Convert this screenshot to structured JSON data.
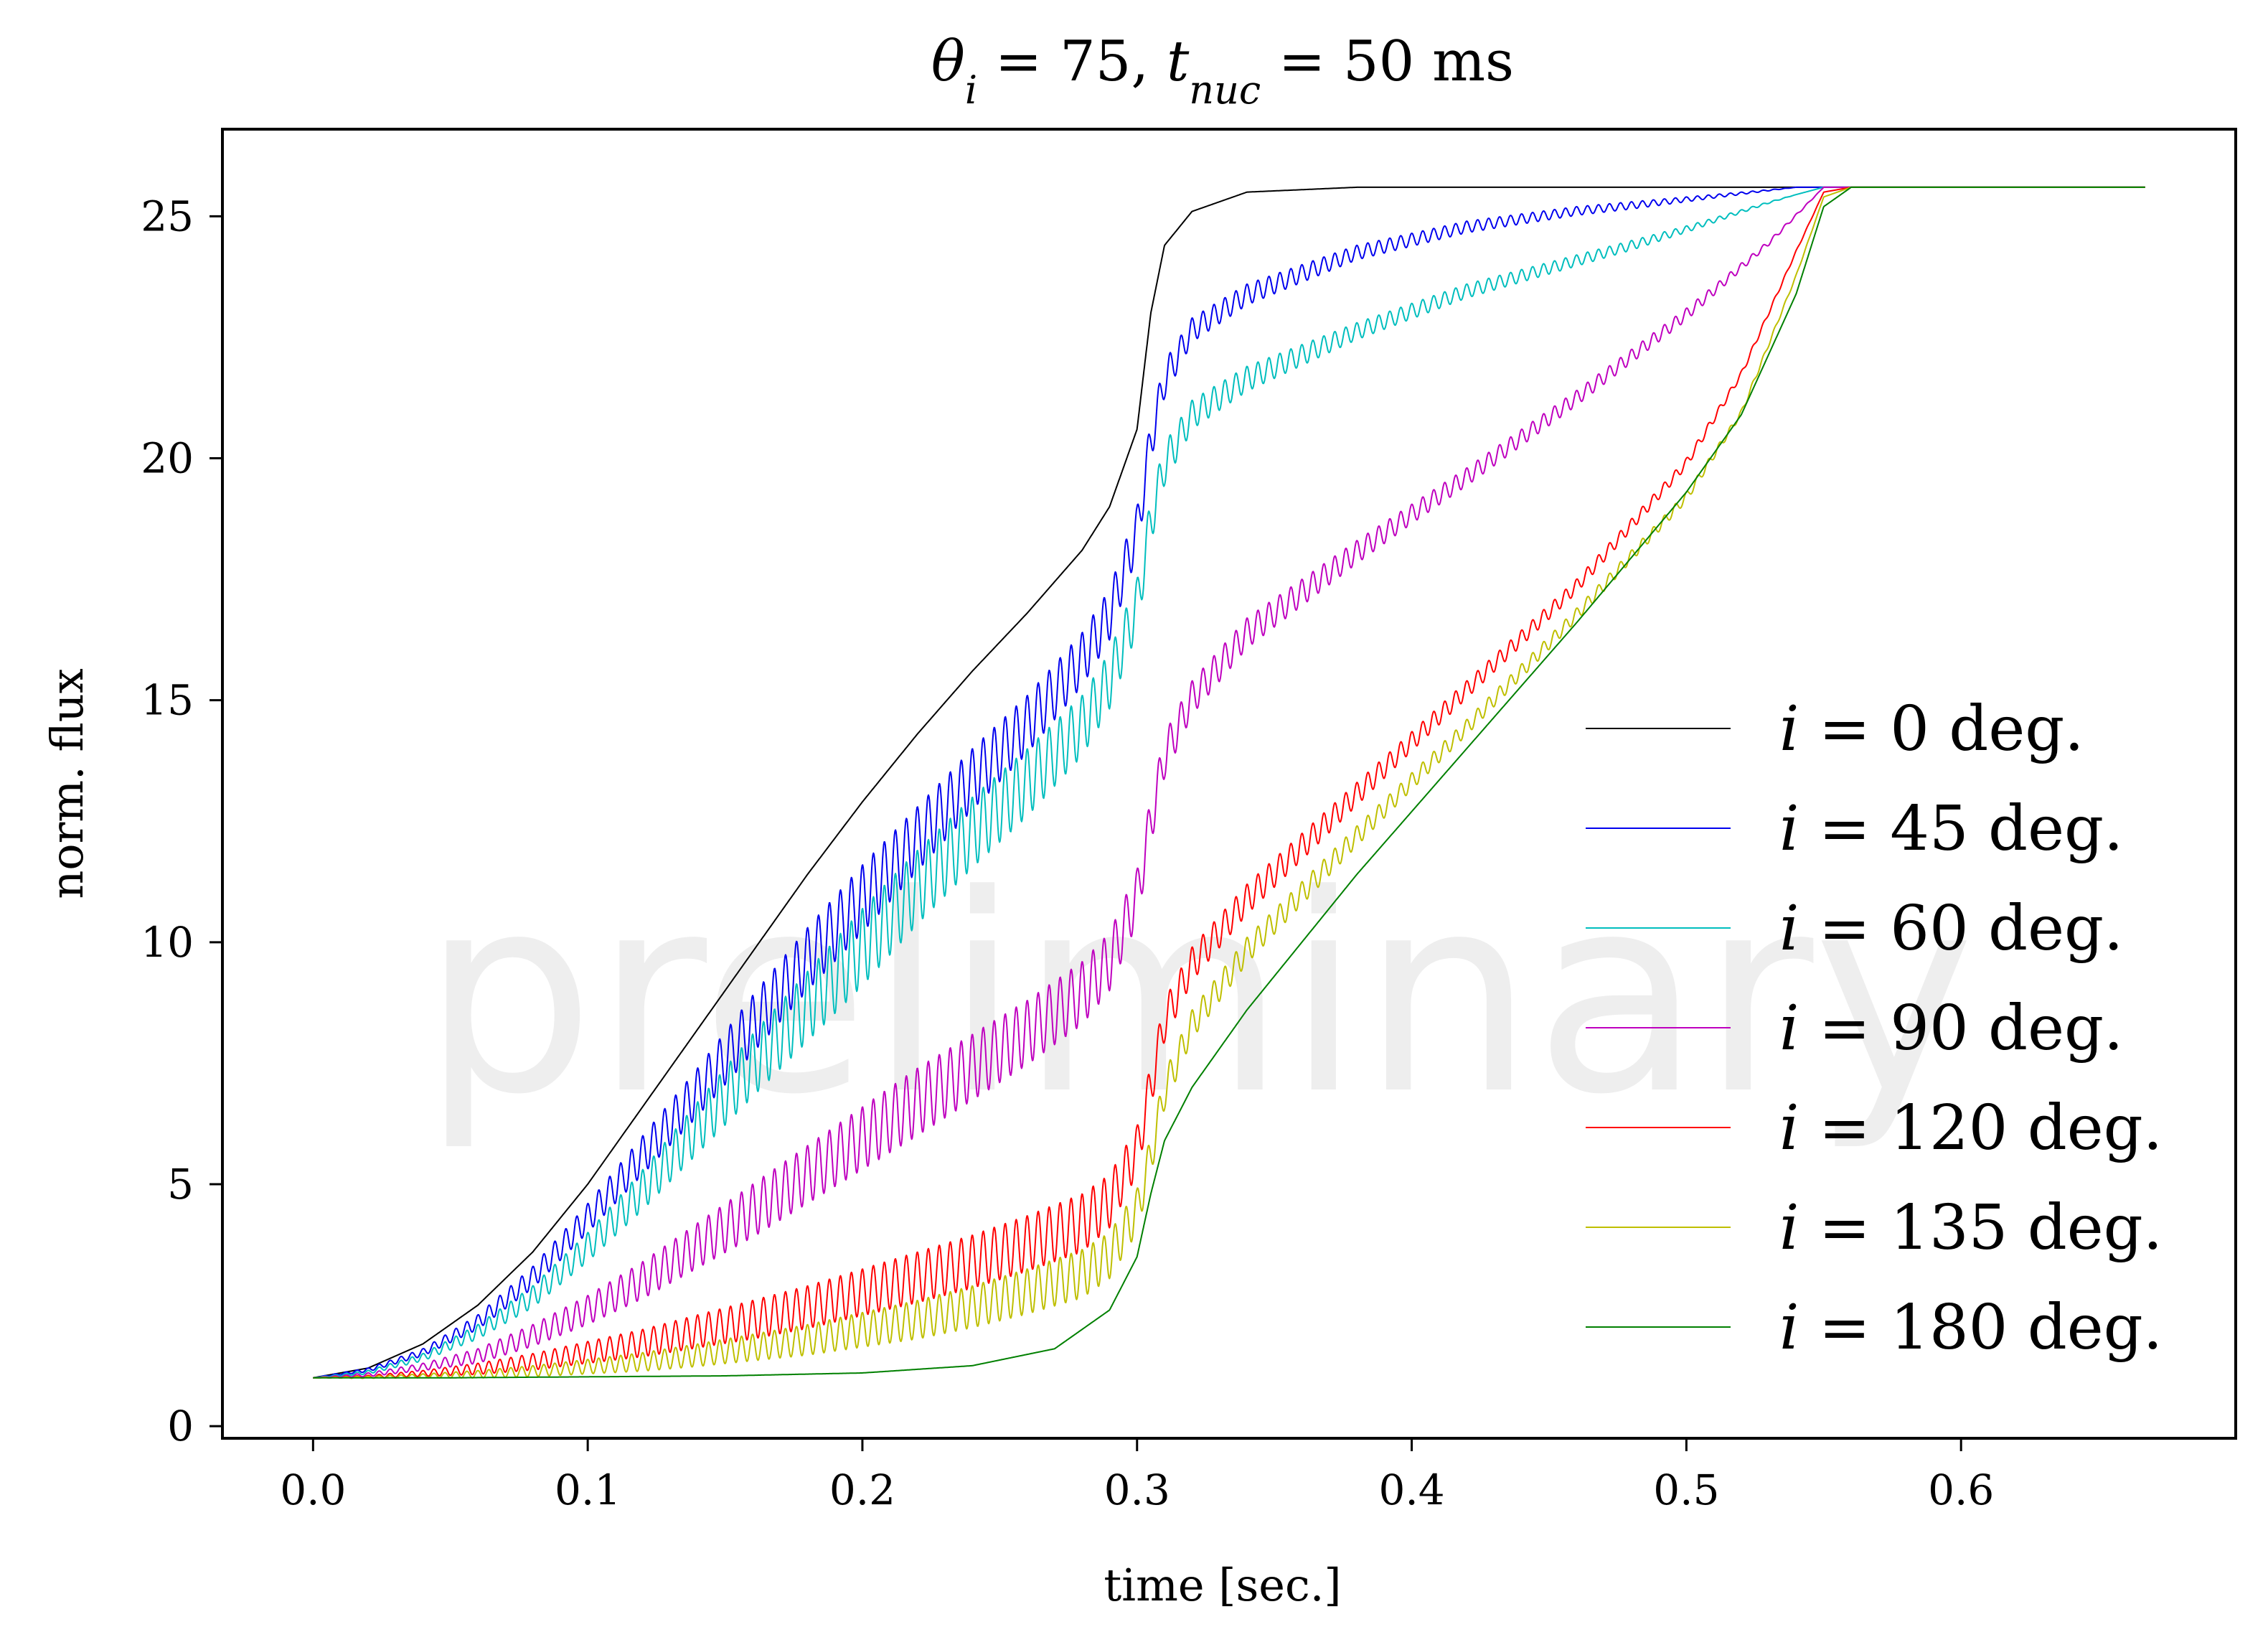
{
  "chart_data": {
    "type": "line",
    "title": "θ_i = 75, t_nuc = 50 ms",
    "xlabel": "time [sec.]",
    "ylabel": "norm. flux",
    "xlim": [
      -0.033,
      0.7
    ],
    "ylim": [
      -0.25,
      26.8
    ],
    "xticks": [
      0.0,
      0.1,
      0.2,
      0.3,
      0.4,
      0.5,
      0.6
    ],
    "xtick_labels": [
      "0.0",
      "0.1",
      "0.2",
      "0.3",
      "0.4",
      "0.5",
      "0.6"
    ],
    "yticks": [
      0,
      5,
      10,
      15,
      20,
      25
    ],
    "ytick_labels": [
      "0",
      "5",
      "10",
      "15",
      "20",
      "25"
    ],
    "grid": false,
    "legend_position": "lower-right",
    "watermark": "preliminary",
    "oscillation_period_s": 0.004,
    "series": [
      {
        "name": "i = 0 deg.",
        "color": "#000000",
        "points": [
          [
            0,
            1.0
          ],
          [
            0.02,
            1.2
          ],
          [
            0.04,
            1.7
          ],
          [
            0.06,
            2.5
          ],
          [
            0.08,
            3.6
          ],
          [
            0.1,
            5.0
          ],
          [
            0.12,
            6.6
          ],
          [
            0.14,
            8.2
          ],
          [
            0.16,
            9.8
          ],
          [
            0.18,
            11.4
          ],
          [
            0.2,
            12.9
          ],
          [
            0.22,
            14.3
          ],
          [
            0.24,
            15.6
          ],
          [
            0.26,
            16.8
          ],
          [
            0.28,
            18.1
          ],
          [
            0.29,
            19.0
          ],
          [
            0.3,
            20.6
          ],
          [
            0.305,
            23.0
          ],
          [
            0.31,
            24.4
          ],
          [
            0.32,
            25.1
          ],
          [
            0.34,
            25.5
          ],
          [
            0.38,
            25.6
          ],
          [
            0.45,
            25.6
          ],
          [
            0.55,
            25.6
          ],
          [
            0.667,
            25.6
          ]
        ],
        "amplitude": [
          [
            0,
            0
          ],
          [
            0.667,
            0
          ]
        ]
      },
      {
        "name": "i = 45 deg.",
        "color": "#0000ee",
        "points": [
          [
            0,
            1.0
          ],
          [
            0.02,
            1.2
          ],
          [
            0.04,
            1.6
          ],
          [
            0.06,
            2.3
          ],
          [
            0.08,
            3.3
          ],
          [
            0.1,
            4.6
          ],
          [
            0.12,
            6.0
          ],
          [
            0.14,
            7.4
          ],
          [
            0.16,
            8.9
          ],
          [
            0.18,
            10.3
          ],
          [
            0.2,
            11.6
          ],
          [
            0.22,
            12.8
          ],
          [
            0.24,
            14.0
          ],
          [
            0.26,
            15.1
          ],
          [
            0.28,
            16.4
          ],
          [
            0.29,
            17.3
          ],
          [
            0.3,
            19.0
          ],
          [
            0.305,
            20.8
          ],
          [
            0.31,
            22.0
          ],
          [
            0.32,
            22.9
          ],
          [
            0.34,
            23.6
          ],
          [
            0.38,
            24.4
          ],
          [
            0.42,
            24.9
          ],
          [
            0.46,
            25.2
          ],
          [
            0.5,
            25.4
          ],
          [
            0.54,
            25.6
          ],
          [
            0.6,
            25.6
          ],
          [
            0.667,
            25.6
          ]
        ],
        "amplitude": [
          [
            0,
            0
          ],
          [
            0.04,
            0.15
          ],
          [
            0.1,
            0.6
          ],
          [
            0.16,
            1.2
          ],
          [
            0.2,
            1.4
          ],
          [
            0.26,
            1.2
          ],
          [
            0.3,
            1.0
          ],
          [
            0.32,
            0.5
          ],
          [
            0.38,
            0.3
          ],
          [
            0.48,
            0.15
          ],
          [
            0.54,
            0
          ],
          [
            0.667,
            0
          ]
        ]
      },
      {
        "name": "i = 60 deg.",
        "color": "#00bebe",
        "points": [
          [
            0,
            1.0
          ],
          [
            0.02,
            1.15
          ],
          [
            0.04,
            1.5
          ],
          [
            0.06,
            2.1
          ],
          [
            0.08,
            2.9
          ],
          [
            0.1,
            4.0
          ],
          [
            0.12,
            5.3
          ],
          [
            0.14,
            6.7
          ],
          [
            0.16,
            8.1
          ],
          [
            0.18,
            9.4
          ],
          [
            0.2,
            10.7
          ],
          [
            0.22,
            11.9
          ],
          [
            0.24,
            13.0
          ],
          [
            0.26,
            14.0
          ],
          [
            0.28,
            15.1
          ],
          [
            0.29,
            16.0
          ],
          [
            0.3,
            17.5
          ],
          [
            0.305,
            19.2
          ],
          [
            0.31,
            20.3
          ],
          [
            0.32,
            21.2
          ],
          [
            0.34,
            21.9
          ],
          [
            0.38,
            22.8
          ],
          [
            0.42,
            23.6
          ],
          [
            0.46,
            24.2
          ],
          [
            0.5,
            24.8
          ],
          [
            0.53,
            25.3
          ],
          [
            0.55,
            25.6
          ],
          [
            0.6,
            25.6
          ],
          [
            0.667,
            25.6
          ]
        ],
        "amplitude": [
          [
            0,
            0
          ],
          [
            0.04,
            0.15
          ],
          [
            0.1,
            0.6
          ],
          [
            0.16,
            1.3
          ],
          [
            0.2,
            1.6
          ],
          [
            0.26,
            1.4
          ],
          [
            0.3,
            1.1
          ],
          [
            0.32,
            0.6
          ],
          [
            0.38,
            0.35
          ],
          [
            0.48,
            0.2
          ],
          [
            0.54,
            0
          ],
          [
            0.667,
            0
          ]
        ]
      },
      {
        "name": "i = 90 deg.",
        "color": "#bf00bf",
        "points": [
          [
            0,
            1.0
          ],
          [
            0.02,
            1.1
          ],
          [
            0.04,
            1.3
          ],
          [
            0.06,
            1.6
          ],
          [
            0.08,
            2.1
          ],
          [
            0.1,
            2.7
          ],
          [
            0.12,
            3.4
          ],
          [
            0.14,
            4.2
          ],
          [
            0.16,
            5.0
          ],
          [
            0.18,
            5.8
          ],
          [
            0.2,
            6.6
          ],
          [
            0.22,
            7.4
          ],
          [
            0.24,
            8.1
          ],
          [
            0.26,
            8.8
          ],
          [
            0.28,
            9.6
          ],
          [
            0.29,
            10.2
          ],
          [
            0.3,
            11.5
          ],
          [
            0.305,
            13.0
          ],
          [
            0.31,
            14.3
          ],
          [
            0.32,
            15.4
          ],
          [
            0.34,
            16.7
          ],
          [
            0.38,
            18.3
          ],
          [
            0.42,
            19.8
          ],
          [
            0.46,
            21.4
          ],
          [
            0.5,
            23.1
          ],
          [
            0.53,
            24.5
          ],
          [
            0.55,
            25.6
          ],
          [
            0.6,
            25.6
          ],
          [
            0.667,
            25.6
          ]
        ],
        "amplitude": [
          [
            0,
            0
          ],
          [
            0.04,
            0.15
          ],
          [
            0.1,
            0.6
          ],
          [
            0.16,
            1.1
          ],
          [
            0.22,
            1.4
          ],
          [
            0.28,
            1.3
          ],
          [
            0.3,
            1.1
          ],
          [
            0.32,
            0.7
          ],
          [
            0.4,
            0.4
          ],
          [
            0.5,
            0.25
          ],
          [
            0.55,
            0
          ],
          [
            0.667,
            0
          ]
        ]
      },
      {
        "name": "i = 120 deg.",
        "color": "#ff0000",
        "points": [
          [
            0,
            1.0
          ],
          [
            0.02,
            1.05
          ],
          [
            0.04,
            1.15
          ],
          [
            0.06,
            1.3
          ],
          [
            0.08,
            1.5
          ],
          [
            0.1,
            1.75
          ],
          [
            0.12,
            2.0
          ],
          [
            0.14,
            2.3
          ],
          [
            0.16,
            2.6
          ],
          [
            0.18,
            2.9
          ],
          [
            0.2,
            3.25
          ],
          [
            0.22,
            3.6
          ],
          [
            0.24,
            3.95
          ],
          [
            0.26,
            4.35
          ],
          [
            0.28,
            4.8
          ],
          [
            0.29,
            5.2
          ],
          [
            0.3,
            6.2
          ],
          [
            0.305,
            7.5
          ],
          [
            0.31,
            8.8
          ],
          [
            0.32,
            9.9
          ],
          [
            0.34,
            11.2
          ],
          [
            0.38,
            13.3
          ],
          [
            0.42,
            15.4
          ],
          [
            0.46,
            17.5
          ],
          [
            0.5,
            20.0
          ],
          [
            0.52,
            21.8
          ],
          [
            0.54,
            24.3
          ],
          [
            0.55,
            25.5
          ],
          [
            0.56,
            25.6
          ],
          [
            0.6,
            25.6
          ],
          [
            0.667,
            25.6
          ]
        ],
        "amplitude": [
          [
            0,
            0
          ],
          [
            0.04,
            0.12
          ],
          [
            0.1,
            0.45
          ],
          [
            0.16,
            0.8
          ],
          [
            0.22,
            1.05
          ],
          [
            0.28,
            1.2
          ],
          [
            0.3,
            1.0
          ],
          [
            0.32,
            0.7
          ],
          [
            0.4,
            0.4
          ],
          [
            0.5,
            0.2
          ],
          [
            0.55,
            0
          ],
          [
            0.667,
            0
          ]
        ]
      },
      {
        "name": "i = 135 deg.",
        "color": "#bfbf00",
        "points": [
          [
            0,
            1.0
          ],
          [
            0.02,
            1.03
          ],
          [
            0.04,
            1.08
          ],
          [
            0.06,
            1.15
          ],
          [
            0.08,
            1.25
          ],
          [
            0.1,
            1.38
          ],
          [
            0.12,
            1.52
          ],
          [
            0.14,
            1.7
          ],
          [
            0.16,
            1.9
          ],
          [
            0.18,
            2.1
          ],
          [
            0.2,
            2.35
          ],
          [
            0.22,
            2.6
          ],
          [
            0.24,
            2.9
          ],
          [
            0.26,
            3.25
          ],
          [
            0.28,
            3.65
          ],
          [
            0.29,
            4.0
          ],
          [
            0.3,
            4.9
          ],
          [
            0.305,
            6.0
          ],
          [
            0.31,
            7.3
          ],
          [
            0.32,
            8.6
          ],
          [
            0.34,
            10.1
          ],
          [
            0.38,
            12.4
          ],
          [
            0.42,
            14.6
          ],
          [
            0.46,
            16.9
          ],
          [
            0.5,
            19.3
          ],
          [
            0.52,
            21.0
          ],
          [
            0.54,
            23.8
          ],
          [
            0.55,
            25.4
          ],
          [
            0.56,
            25.6
          ],
          [
            0.6,
            25.6
          ],
          [
            0.667,
            25.6
          ]
        ],
        "amplitude": [
          [
            0,
            0
          ],
          [
            0.04,
            0.08
          ],
          [
            0.1,
            0.3
          ],
          [
            0.16,
            0.55
          ],
          [
            0.22,
            0.8
          ],
          [
            0.28,
            1.0
          ],
          [
            0.3,
            0.9
          ],
          [
            0.32,
            0.6
          ],
          [
            0.4,
            0.35
          ],
          [
            0.5,
            0.2
          ],
          [
            0.55,
            0
          ],
          [
            0.667,
            0
          ]
        ]
      },
      {
        "name": "i = 180 deg.",
        "color": "#008000",
        "points": [
          [
            0,
            1.0
          ],
          [
            0.05,
            1.0
          ],
          [
            0.1,
            1.02
          ],
          [
            0.15,
            1.04
          ],
          [
            0.2,
            1.1
          ],
          [
            0.24,
            1.25
          ],
          [
            0.27,
            1.6
          ],
          [
            0.29,
            2.4
          ],
          [
            0.3,
            3.5
          ],
          [
            0.305,
            4.8
          ],
          [
            0.31,
            5.9
          ],
          [
            0.32,
            7.0
          ],
          [
            0.34,
            8.6
          ],
          [
            0.38,
            11.4
          ],
          [
            0.42,
            14.0
          ],
          [
            0.46,
            16.6
          ],
          [
            0.5,
            19.3
          ],
          [
            0.52,
            20.9
          ],
          [
            0.54,
            23.4
          ],
          [
            0.55,
            25.2
          ],
          [
            0.56,
            25.6
          ],
          [
            0.6,
            25.6
          ],
          [
            0.667,
            25.6
          ]
        ],
        "amplitude": [
          [
            0,
            0
          ],
          [
            0.667,
            0
          ]
        ]
      }
    ]
  }
}
